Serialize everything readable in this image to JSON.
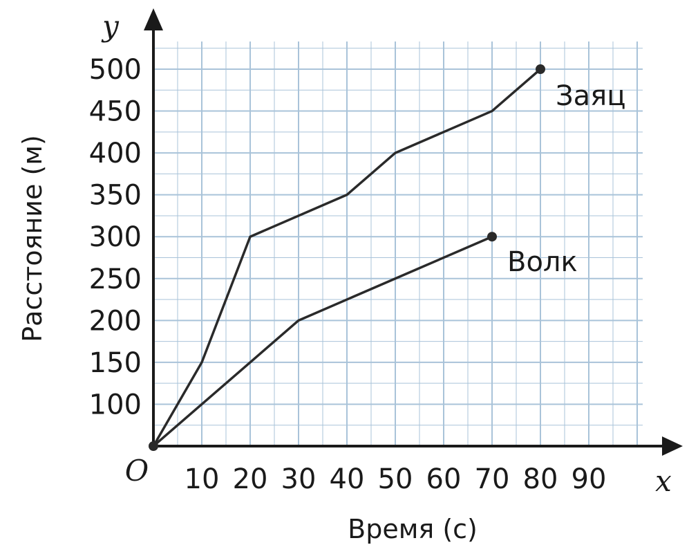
{
  "chart_data": {
    "type": "line",
    "xlabel": "Время (с)",
    "ylabel": "Расстояние (м)",
    "x_axis_letter": "x",
    "y_axis_letter": "y",
    "origin_label": "O",
    "xlim": [
      0,
      100
    ],
    "ylim": [
      50,
      520
    ],
    "x_ticks": [
      10,
      20,
      30,
      40,
      50,
      60,
      70,
      80,
      90
    ],
    "y_ticks": [
      100,
      150,
      200,
      250,
      300,
      350,
      400,
      450,
      500
    ],
    "grid": true,
    "series": [
      {
        "name": "Заяц",
        "x": [
          0,
          10,
          20,
          40,
          50,
          70,
          80
        ],
        "y": [
          50,
          150,
          300,
          350,
          400,
          450,
          500
        ]
      },
      {
        "name": "Волк",
        "x": [
          0,
          10,
          20,
          30,
          40,
          70
        ],
        "y": [
          50,
          100,
          150,
          200,
          225,
          300
        ]
      }
    ]
  },
  "colors": {
    "grid": "#a9c3d9",
    "line": "#2a2a2a",
    "axis": "#1a1a1a",
    "background": "#ffffff"
  }
}
